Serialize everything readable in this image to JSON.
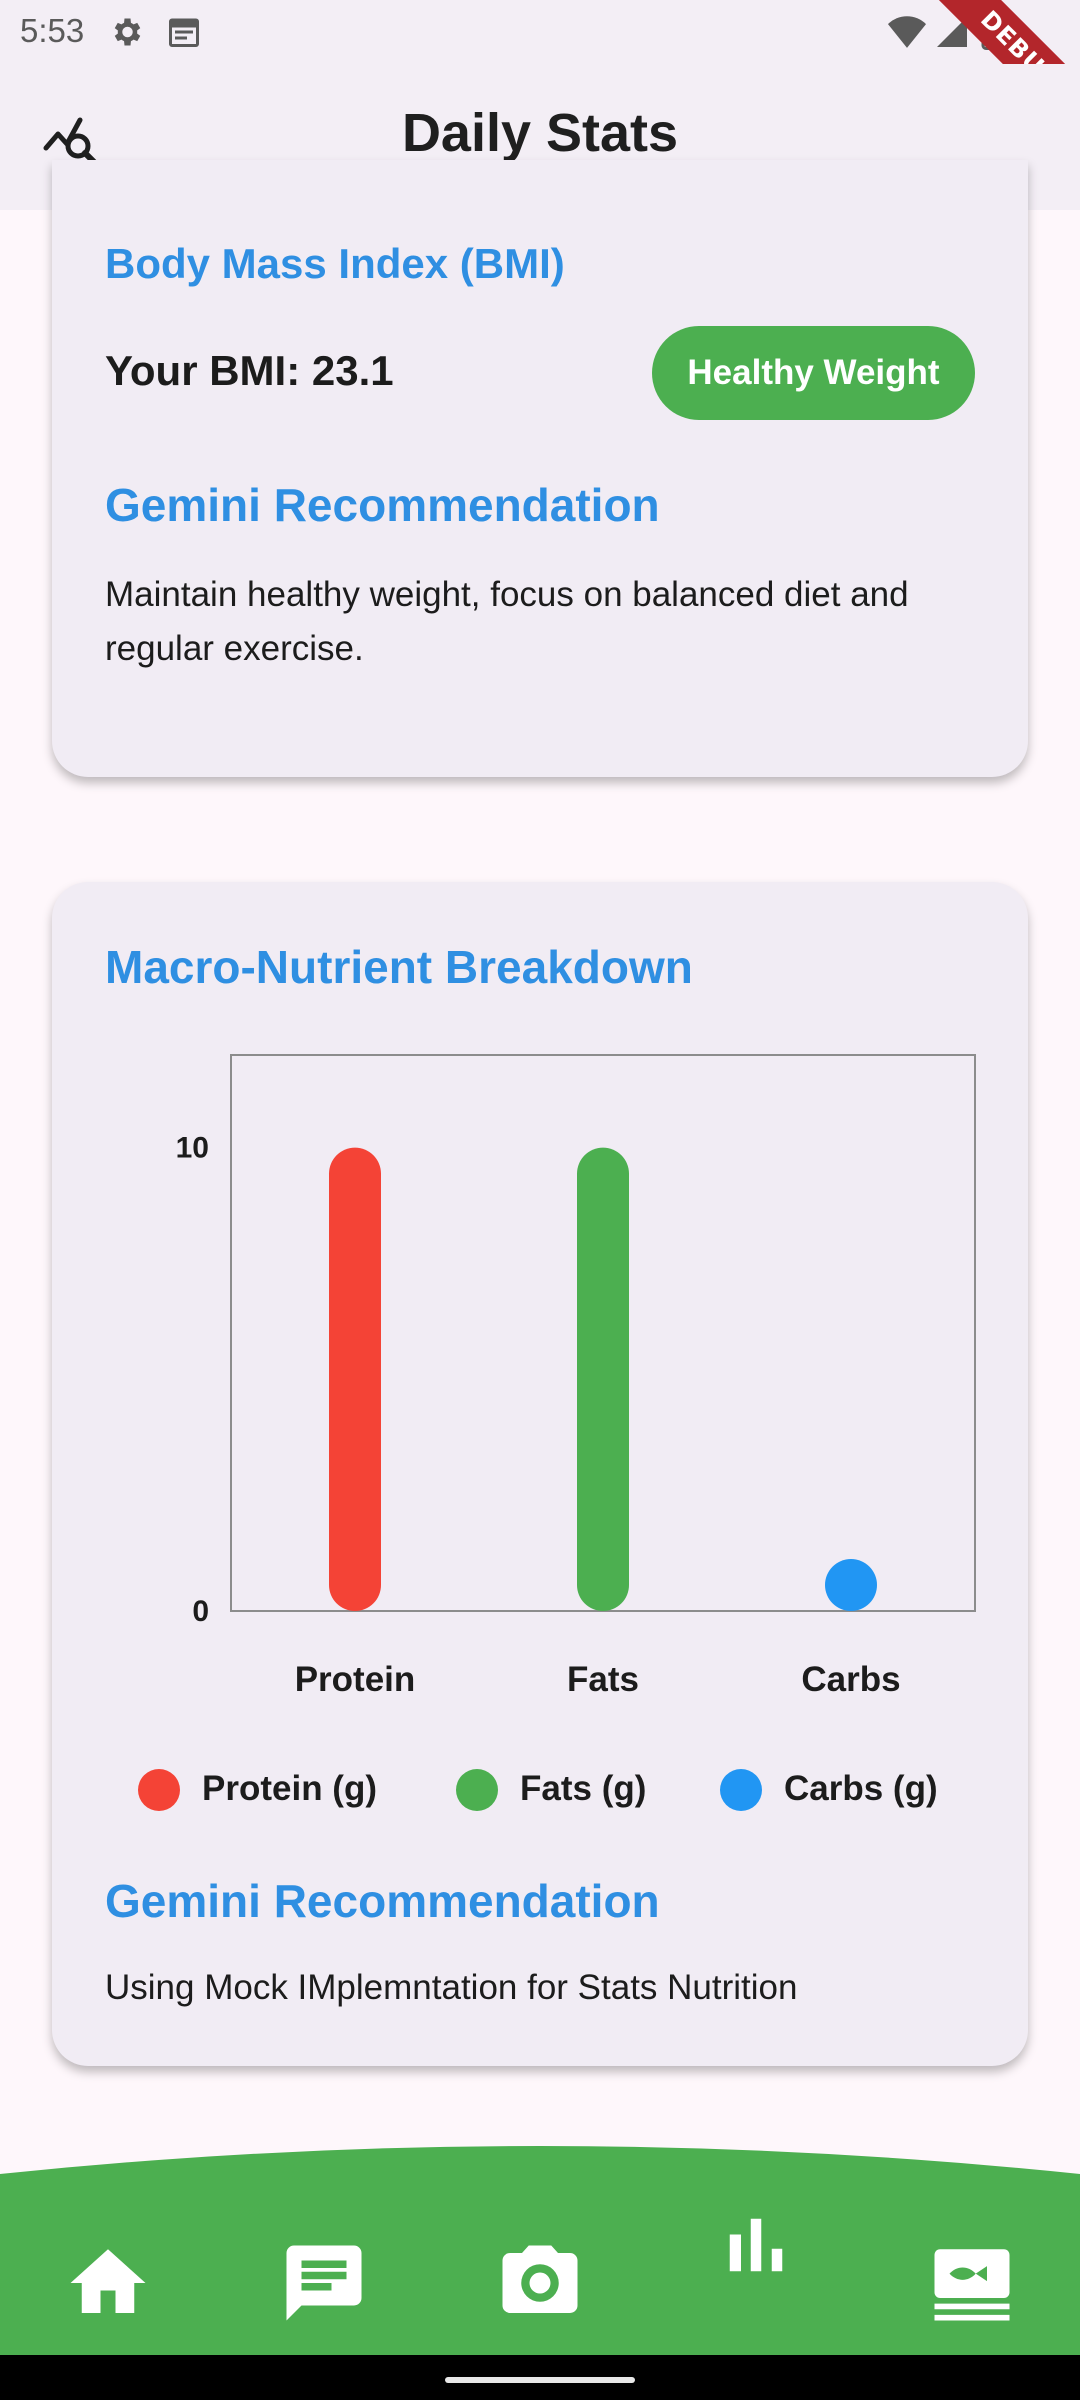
{
  "status_bar": {
    "time": "5:53",
    "debug_label": "DEBUG"
  },
  "app_bar": {
    "title": "Daily Stats"
  },
  "bmi_card": {
    "title": "Body Mass Index (BMI)",
    "value_text": "Your BMI: 23.1",
    "category": "Healthy Weight",
    "recommendation_title": "Gemini Recommendation",
    "recommendation": "Maintain healthy weight, focus on balanced diet and regular exercise."
  },
  "macro_card": {
    "title": "Macro-Nutrient Breakdown",
    "recommendation_title": "Gemini Recommendation",
    "recommendation": "Using Mock IMplemntation for Stats Nutrition",
    "legend": [
      {
        "label": "Protein (g)",
        "color": "#f44336"
      },
      {
        "label": "Fats (g)",
        "color": "#4caf50"
      },
      {
        "label": "Carbs (g)",
        "color": "#2196f3"
      }
    ]
  },
  "chart_data": {
    "type": "bar",
    "categories": [
      "Protein",
      "Fats",
      "Carbs"
    ],
    "values": [
      10,
      10,
      0
    ],
    "colors": [
      "#f44336",
      "#4caf50",
      "#2196f3"
    ],
    "ylim": [
      0,
      12
    ],
    "yticks": [
      {
        "value": 0,
        "label": "0"
      },
      {
        "value": 10,
        "label": "10"
      }
    ],
    "title": "",
    "xlabel": "",
    "ylabel": "",
    "grid": false,
    "legend_position": "bottom"
  },
  "bottom_nav": {
    "items": [
      {
        "icon": "home-icon"
      },
      {
        "icon": "chat-icon"
      },
      {
        "icon": "camera-icon"
      },
      {
        "icon": "bar-chart-icon"
      },
      {
        "icon": "food-icon"
      }
    ],
    "selected_index": 3,
    "background": "#4caf50"
  }
}
